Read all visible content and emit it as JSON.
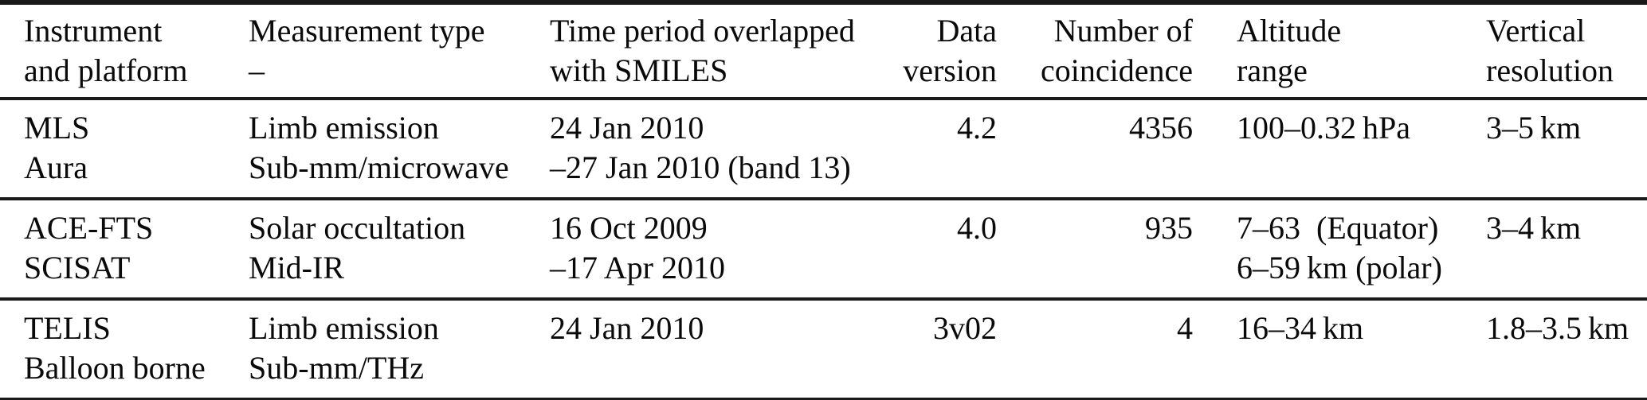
{
  "page": {
    "background": "#ffffff",
    "text_color": "#0a0a0a",
    "rule_color": "#1a1a1a"
  },
  "table": {
    "columns": [
      {
        "id": "instrument-and-platform",
        "label": "Instrument\nand platform",
        "align": "left"
      },
      {
        "id": "measurement-type",
        "label": "Measurement type\n–",
        "align": "left"
      },
      {
        "id": "time-period-overlapped",
        "label": "Time period overlapped\nwith SMILES",
        "align": "left"
      },
      {
        "id": "data-version",
        "label": "Data\nversion",
        "align": "right"
      },
      {
        "id": "number-of-coincidence",
        "label": "Number of\ncoincidence",
        "align": "right"
      },
      {
        "id": "altitude-range",
        "label": "Altitude\nrange",
        "align": "left"
      },
      {
        "id": "vertical-resolution",
        "label": "Vertical\nresolution",
        "align": "left"
      }
    ],
    "rows": [
      {
        "cells": [
          "MLS\nAura",
          "Limb emission\nSub-mm/microwave",
          "24 Jan 2010\n–27 Jan 2010 (band 13)",
          "4.2",
          "4356",
          "100–0.32 hPa",
          "3–5 km"
        ]
      },
      {
        "cells": [
          "ACE-FTS\nSCISAT",
          "Solar occultation\nMid-IR",
          "16 Oct 2009\n–17 Apr 2010",
          "4.0",
          "935",
          "7–63  (Equator)\n6–59 km (polar)",
          "3–4 km"
        ]
      },
      {
        "cells": [
          "TELIS\nBalloon borne",
          "Limb emission\nSub-mm/THz",
          "24 Jan 2010",
          "3v02",
          "4",
          "16–34 km",
          "1.8–3.5 km"
        ]
      }
    ]
  }
}
